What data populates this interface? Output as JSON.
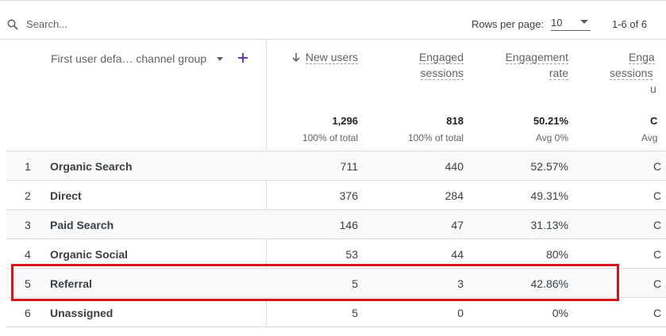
{
  "toolbar": {
    "search_placeholder": "Search...",
    "rows_per_page_label": "Rows per page:",
    "rows_per_page_value": "10",
    "pagination": "1-6 of 6"
  },
  "table": {
    "dimension_header": "First user defa… channel group",
    "columns": [
      {
        "line1": "New users",
        "line2": "",
        "line3": "",
        "sorted": true
      },
      {
        "line1": "Engaged",
        "line2": "sessions",
        "line3": ""
      },
      {
        "line1": "Engagement",
        "line2": "rate",
        "line3": ""
      },
      {
        "line1": "Enga",
        "line2": "sessions",
        "line3": "u"
      }
    ],
    "totals": [
      {
        "value": "1,296",
        "sub": "100% of total"
      },
      {
        "value": "818",
        "sub": "100% of total"
      },
      {
        "value": "50.21%",
        "sub": "Avg 0%"
      },
      {
        "value": "C",
        "sub": "Avg"
      }
    ],
    "rows": [
      {
        "num": "1",
        "name": "Organic Search",
        "v1": "711",
        "v2": "440",
        "v3": "52.57%",
        "v4": "C"
      },
      {
        "num": "2",
        "name": "Direct",
        "v1": "376",
        "v2": "284",
        "v3": "49.31%",
        "v4": "C"
      },
      {
        "num": "3",
        "name": "Paid Search",
        "v1": "146",
        "v2": "47",
        "v3": "31.13%",
        "v4": "C"
      },
      {
        "num": "4",
        "name": "Organic Social",
        "v1": "53",
        "v2": "44",
        "v3": "80%",
        "v4": "C"
      },
      {
        "num": "5",
        "name": "Referral",
        "v1": "5",
        "v2": "3",
        "v3": "42.86%",
        "v4": "C"
      },
      {
        "num": "6",
        "name": "Unassigned",
        "v1": "5",
        "v2": "0",
        "v3": "0%",
        "v4": "C"
      }
    ]
  },
  "colors": {
    "accent": "#673ab7",
    "highlight": "#d4161c"
  }
}
